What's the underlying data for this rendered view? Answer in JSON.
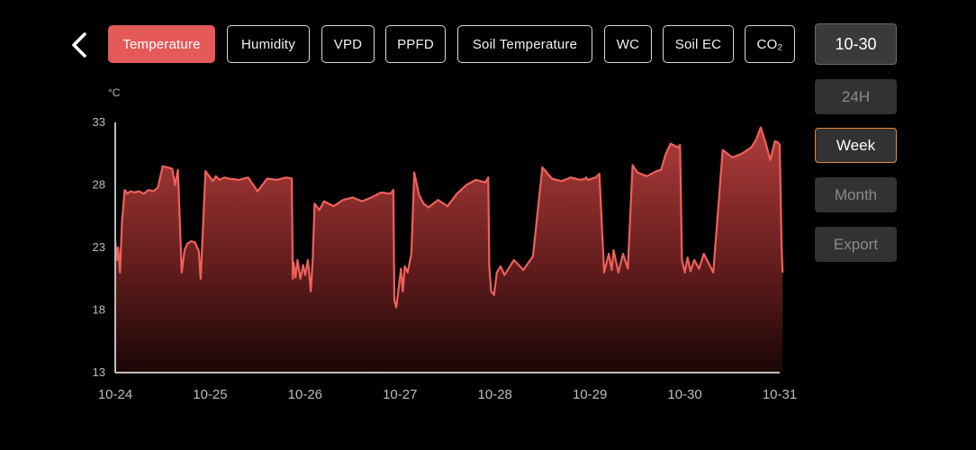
{
  "tabs": [
    {
      "label": "Temperature",
      "active": true
    },
    {
      "label": "Humidity",
      "active": false
    },
    {
      "label": "VPD",
      "active": false
    },
    {
      "label": "PPFD",
      "active": false
    },
    {
      "label": "Soil Temperature",
      "active": false
    },
    {
      "label": "WC",
      "active": false
    },
    {
      "label": "Soil EC",
      "active": false
    },
    {
      "label": "CO₂",
      "active": false
    }
  ],
  "side": {
    "date": "10-30",
    "h24": "24H",
    "week": "Week",
    "month": "Month",
    "export": "Export",
    "selected": "week"
  },
  "colors": {
    "accent": "#e55a58",
    "line": "#f0605a",
    "selected_border": "#e6883a",
    "button_bg": "#323232",
    "axis": "#bdbdbd"
  },
  "icons": {
    "back": "chevron-left-icon"
  },
  "chart_data": {
    "type": "area",
    "unit": "°C",
    "xlabel": "",
    "ylabel": "",
    "ylim": [
      13,
      33
    ],
    "yticks": [
      13,
      18,
      23,
      28,
      33
    ],
    "xticks": [
      "10-24",
      "10-25",
      "10-26",
      "10-27",
      "10-28",
      "10-29",
      "10-30",
      "10-31"
    ],
    "grid": false,
    "series": [
      {
        "x": [
          0.0,
          0.02,
          0.03,
          0.05,
          0.07,
          0.1,
          0.13,
          0.16,
          0.2,
          0.25,
          0.3,
          0.35,
          0.4,
          0.45,
          0.5,
          0.55,
          0.6,
          0.63,
          0.66,
          0.7,
          0.73,
          0.76,
          0.8,
          0.84,
          0.88,
          0.9,
          0.95,
          1.0,
          1.03,
          1.06,
          1.1,
          1.15,
          1.2,
          1.3,
          1.4,
          1.5,
          1.6,
          1.7,
          1.8,
          1.86,
          1.87,
          1.88,
          1.9,
          1.92,
          1.95,
          1.98,
          2.0,
          2.03,
          2.06,
          2.08,
          2.1,
          2.15,
          2.2,
          2.3,
          2.4,
          2.5,
          2.6,
          2.7,
          2.8,
          2.9,
          2.93,
          2.94,
          2.96,
          2.99,
          3.01,
          3.03,
          3.05,
          3.08,
          3.12,
          3.15,
          3.2,
          3.25,
          3.3,
          3.4,
          3.5,
          3.6,
          3.7,
          3.8,
          3.9,
          3.93,
          3.94,
          3.96,
          3.99,
          4.02,
          4.06,
          4.1,
          4.2,
          4.3,
          4.4,
          4.5,
          4.6,
          4.7,
          4.8,
          4.9,
          4.95,
          4.96,
          4.98,
          5.02,
          5.06,
          5.1,
          5.15,
          5.2,
          5.23,
          5.25,
          5.3,
          5.35,
          5.4,
          5.45,
          5.5,
          5.6,
          5.7,
          5.75,
          5.8,
          5.85,
          5.9,
          5.93,
          5.95,
          5.97,
          6.0,
          6.03,
          6.06,
          6.1,
          6.15,
          6.2,
          6.3,
          6.4,
          6.5,
          6.6,
          6.7,
          6.75,
          6.8,
          6.85,
          6.9,
          6.95,
          6.98,
          7.0,
          7.02,
          7.03
        ],
        "y": [
          23.5,
          22.0,
          23.0,
          21.0,
          25.0,
          27.6,
          27.3,
          27.5,
          27.4,
          27.5,
          27.3,
          27.6,
          27.5,
          27.8,
          29.5,
          29.4,
          29.3,
          28.0,
          29.2,
          21.0,
          22.8,
          23.3,
          23.5,
          23.4,
          22.7,
          20.5,
          29.1,
          28.6,
          28.3,
          28.7,
          28.4,
          28.6,
          28.5,
          28.4,
          28.6,
          27.5,
          28.5,
          28.4,
          28.6,
          28.5,
          20.5,
          21.8,
          20.6,
          22.0,
          20.5,
          21.6,
          20.8,
          22.0,
          19.5,
          22.0,
          26.5,
          26.0,
          26.7,
          26.3,
          26.8,
          27.0,
          26.7,
          27.0,
          27.4,
          27.3,
          27.6,
          18.8,
          18.2,
          20.0,
          21.3,
          19.5,
          21.5,
          21.0,
          22.5,
          29.0,
          27.2,
          26.5,
          26.2,
          26.8,
          26.3,
          27.3,
          28.0,
          28.4,
          28.2,
          28.6,
          21.5,
          19.5,
          19.2,
          21.0,
          21.5,
          20.8,
          22.0,
          21.2,
          22.3,
          29.4,
          28.5,
          28.3,
          28.6,
          28.4,
          28.5,
          28.6,
          28.4,
          28.5,
          28.6,
          28.9,
          21.0,
          22.5,
          21.2,
          22.8,
          21.0,
          22.5,
          21.3,
          29.6,
          29.0,
          28.7,
          29.1,
          29.2,
          30.5,
          31.3,
          31.1,
          31.0,
          31.2,
          22.0,
          21.0,
          22.2,
          21.1,
          22.0,
          21.3,
          22.5,
          21.0,
          30.8,
          30.2,
          30.5,
          31.0,
          31.6,
          32.6,
          31.4,
          30.0,
          31.5,
          31.4,
          31.2,
          23.0,
          21.0
        ]
      }
    ]
  }
}
